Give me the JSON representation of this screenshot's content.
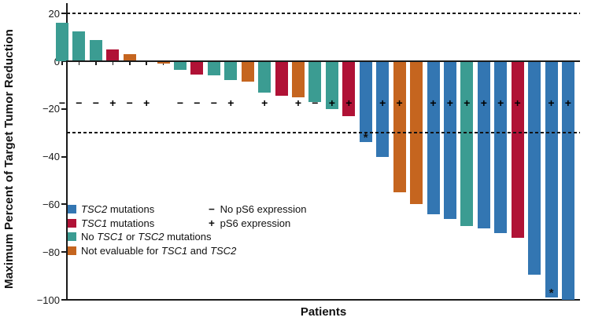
{
  "chart_data": {
    "type": "bar",
    "subtype": "waterfall",
    "title": "",
    "xlabel": "Patients",
    "ylabel": "Maximum Percent of Target Tumor Reduction",
    "ylim": [
      -100,
      24
    ],
    "yticks": [
      20,
      0,
      -20,
      -40,
      -60,
      -80,
      -100
    ],
    "dashed_reference_lines": [
      20,
      -30
    ],
    "ps6_sign_row_value": -17.5,
    "groups": {
      "tsc2": {
        "label": "TSC2 mutations",
        "color": "#3376B2"
      },
      "tsc1": {
        "label": "TSC1 mutations",
        "color": "#B01236"
      },
      "none": {
        "label": "No TSC1 or TSC2 mutations",
        "color": "#3B9C92"
      },
      "ne": {
        "label": "Not evaluable for TSC1 and TSC2",
        "color": "#C5651F"
      }
    },
    "patients": [
      {
        "value": 16,
        "group": "none",
        "ps6": "-"
      },
      {
        "value": 12.5,
        "group": "none",
        "ps6": "-"
      },
      {
        "value": 9,
        "group": "none",
        "ps6": "-"
      },
      {
        "value": 5,
        "group": "tsc1",
        "ps6": "+"
      },
      {
        "value": 3,
        "group": "ne",
        "ps6": "-"
      },
      {
        "value": 0,
        "group": null,
        "ps6": "+"
      },
      {
        "value": -1,
        "group": "ne",
        "ps6": null
      },
      {
        "value": -3.5,
        "group": "none",
        "ps6": "-"
      },
      {
        "value": -5.5,
        "group": "tsc1",
        "ps6": "-"
      },
      {
        "value": -6,
        "group": "none",
        "ps6": "-"
      },
      {
        "value": -8,
        "group": "none",
        "ps6": "+"
      },
      {
        "value": -8.5,
        "group": "ne",
        "ps6": null
      },
      {
        "value": -13,
        "group": "none",
        "ps6": "+"
      },
      {
        "value": -14.5,
        "group": "tsc1",
        "ps6": null
      },
      {
        "value": -15,
        "group": "ne",
        "ps6": "+"
      },
      {
        "value": -17,
        "group": "none",
        "ps6": "-"
      },
      {
        "value": -20,
        "group": "none",
        "ps6": "+"
      },
      {
        "value": -23,
        "group": "tsc1",
        "ps6": "+"
      },
      {
        "value": -34,
        "group": "tsc2",
        "ps6": null,
        "star": true
      },
      {
        "value": -40,
        "group": "tsc2",
        "ps6": "+"
      },
      {
        "value": -55,
        "group": "ne",
        "ps6": "+"
      },
      {
        "value": -60,
        "group": "ne",
        "ps6": null
      },
      {
        "value": -64,
        "group": "tsc2",
        "ps6": "+"
      },
      {
        "value": -66,
        "group": "tsc2",
        "ps6": "+"
      },
      {
        "value": -69,
        "group": "none",
        "ps6": "+"
      },
      {
        "value": -70,
        "group": "tsc2",
        "ps6": "+"
      },
      {
        "value": -72,
        "group": "tsc2",
        "ps6": "+"
      },
      {
        "value": -74,
        "group": "tsc1",
        "ps6": "+"
      },
      {
        "value": -89.5,
        "group": "tsc2",
        "ps6": null
      },
      {
        "value": -99,
        "group": "tsc2",
        "ps6": "+",
        "star": true
      },
      {
        "value": -100,
        "group": "tsc2",
        "ps6": "+"
      }
    ]
  },
  "legend": {
    "mutation_items": [
      {
        "group": "tsc2",
        "segments": [
          {
            "text": "TSC2",
            "italic": true
          },
          {
            "text": " mutations",
            "italic": false
          }
        ]
      },
      {
        "group": "tsc1",
        "segments": [
          {
            "text": "TSC1",
            "italic": true
          },
          {
            "text": " mutations",
            "italic": false
          }
        ]
      },
      {
        "group": "none",
        "segments": [
          {
            "text": "No ",
            "italic": false
          },
          {
            "text": "TSC1",
            "italic": true
          },
          {
            "text": " or ",
            "italic": false
          },
          {
            "text": "TSC2",
            "italic": true
          },
          {
            "text": " mutations",
            "italic": false
          }
        ]
      },
      {
        "group": "ne",
        "segments": [
          {
            "text": "Not evaluable for ",
            "italic": false
          },
          {
            "text": "TSC1",
            "italic": true
          },
          {
            "text": " and ",
            "italic": false
          },
          {
            "text": "TSC2",
            "italic": true
          }
        ]
      }
    ],
    "ps6_items": [
      {
        "symbol": "−",
        "label": "No pS6 expression"
      },
      {
        "symbol": "+",
        "label": "pS6 expression"
      }
    ]
  }
}
